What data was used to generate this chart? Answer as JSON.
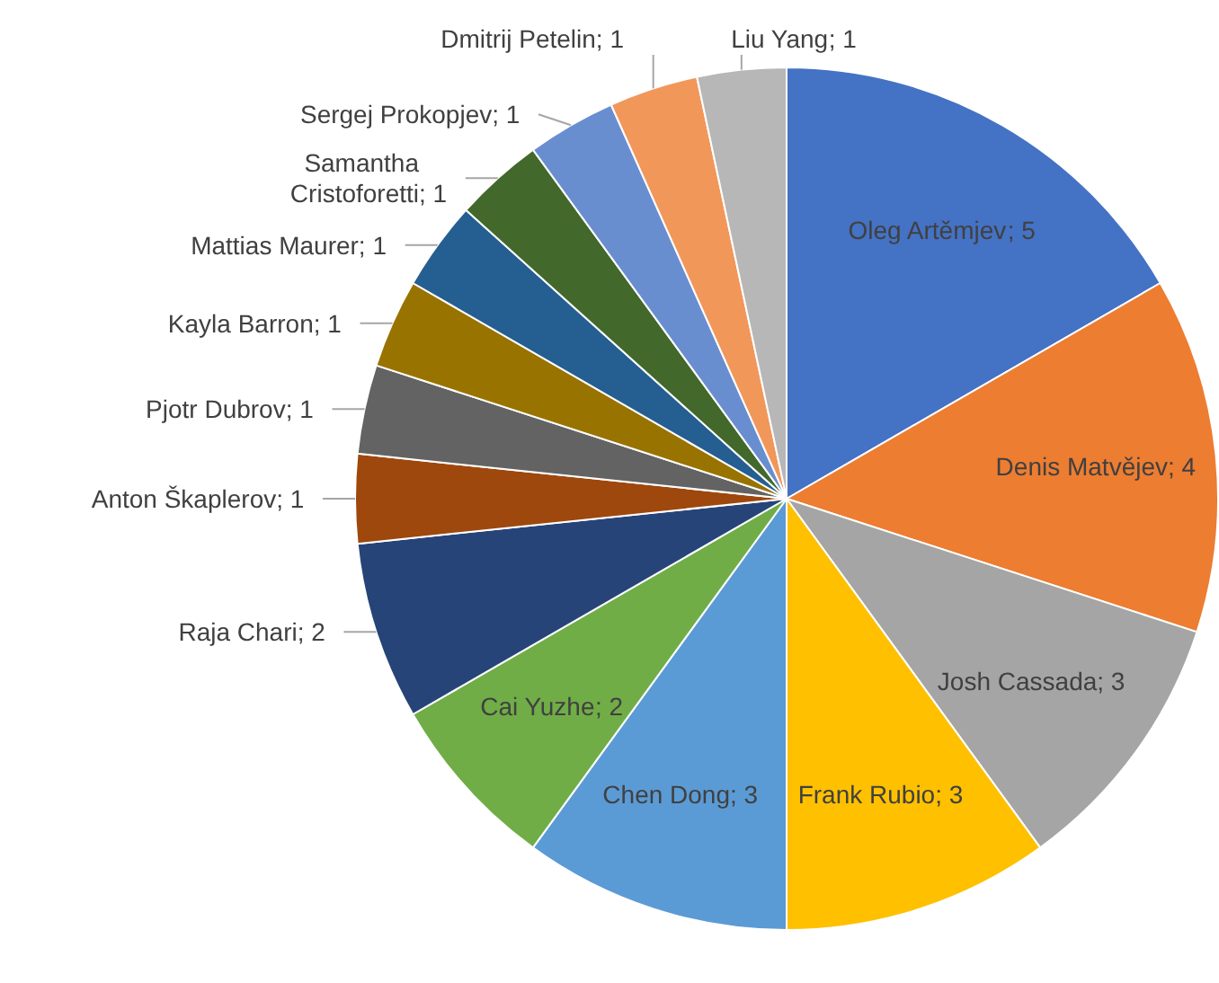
{
  "chart_data": {
    "type": "pie",
    "categories": [
      "Oleg Artěmjev",
      "Denis Matvějev",
      "Josh Cassada",
      "Frank Rubio",
      "Chen Dong",
      "Cai Yuzhe",
      "Raja Chari",
      "Anton Škaplerov",
      "Pjotr Dubrov",
      "Kayla Barron",
      "Mattias Maurer",
      "Samantha Cristoforetti",
      "Sergej Prokopjev",
      "Dmitrij Petelin",
      "Liu Yang"
    ],
    "values": [
      5,
      4,
      3,
      3,
      3,
      2,
      2,
      1,
      1,
      1,
      1,
      1,
      1,
      1,
      1
    ],
    "value_labels": [
      "; 5",
      "; 4",
      "; 3",
      "; 3",
      "; 3",
      "; 2",
      "; 2",
      "; 1",
      "; 1",
      "; 1",
      "; 1",
      "; 1",
      "; 1",
      "; 1",
      "; 1"
    ],
    "data_labels": true,
    "colors": [
      "#4472c4",
      "#ed7d31",
      "#a5a5a5",
      "#ffc000",
      "#5b9bd5",
      "#70ad47",
      "#264478",
      "#9e480e",
      "#636363",
      "#997300",
      "#255e91",
      "#43682b",
      "#698ed0",
      "#f1975a",
      "#b7b7b7"
    ]
  }
}
